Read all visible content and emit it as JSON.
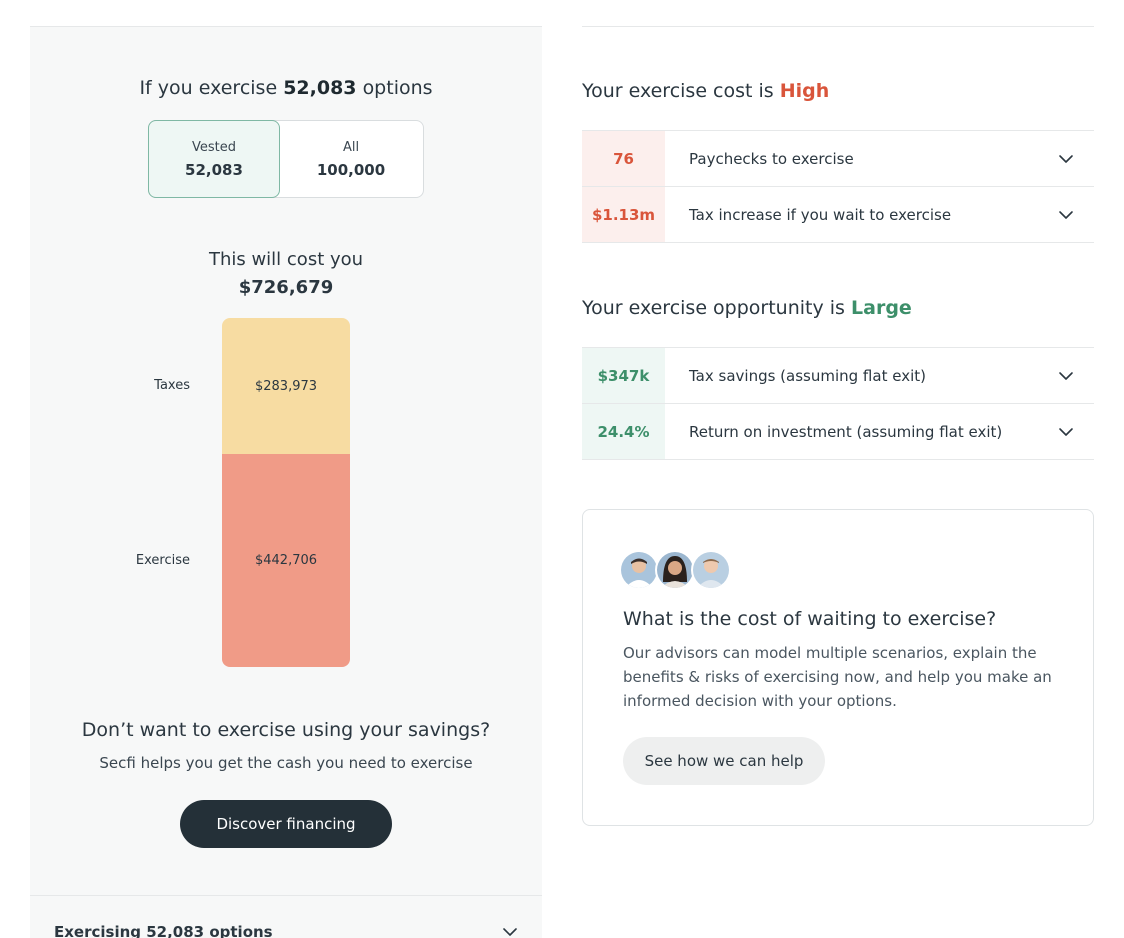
{
  "colors": {
    "high": "#d9553b",
    "large": "#3d8f6a",
    "high_bg": "#fcefed",
    "large_bg": "#eef7f4",
    "taxes_segment": "#f7dca2",
    "exercise_segment": "#f09b87"
  },
  "left": {
    "header_prefix": "If you exercise",
    "header_count": "52,083",
    "header_suffix": "options",
    "toggle": {
      "vested_label": "Vested",
      "vested_value": "52,083",
      "all_label": "All",
      "all_value": "100,000"
    },
    "cost_title": "This will cost you",
    "cost_value": "$726,679",
    "breakdown": [
      {
        "label": "Taxes",
        "value_text": "$283,973",
        "value": 283973,
        "color": "#f7dca2"
      },
      {
        "label": "Exercise",
        "value_text": "$442,706",
        "value": 442706,
        "color": "#f09b87"
      }
    ],
    "savings_title": "Don’t want to exercise using your savings?",
    "savings_sub": "Secfi helps you get the cash you need to exercise",
    "finance_button": "Discover financing",
    "exercising_label": "Exercising 52,083 options",
    "exercising_chevron": "chevron-down-icon"
  },
  "cost_section": {
    "title_prefix": "Your exercise cost is",
    "title_rating": "High",
    "rows": [
      {
        "value": "76",
        "label": "Paychecks to exercise",
        "icon": "chevron-down-icon"
      },
      {
        "value": "$1.13m",
        "label": "Tax increase if you wait to exercise",
        "icon": "chevron-down-icon"
      }
    ]
  },
  "opportunity_section": {
    "title_prefix": "Your exercise opportunity is",
    "title_rating": "Large",
    "rows": [
      {
        "value": "$347k",
        "label": "Tax savings (assuming flat exit)",
        "icon": "chevron-down-icon"
      },
      {
        "value": "24.4%",
        "label": "Return on investment (assuming flat exit)",
        "icon": "chevron-down-icon"
      }
    ]
  },
  "advisor_card": {
    "title": "What is the cost of waiting to exercise?",
    "body": "Our advisors can model multiple scenarios, explain the benefits & risks of exercising now, and help you make an informed decision with your options.",
    "button": "See how we can help",
    "avatars": [
      "advisor-avatar-1",
      "advisor-avatar-2",
      "advisor-avatar-3"
    ]
  }
}
